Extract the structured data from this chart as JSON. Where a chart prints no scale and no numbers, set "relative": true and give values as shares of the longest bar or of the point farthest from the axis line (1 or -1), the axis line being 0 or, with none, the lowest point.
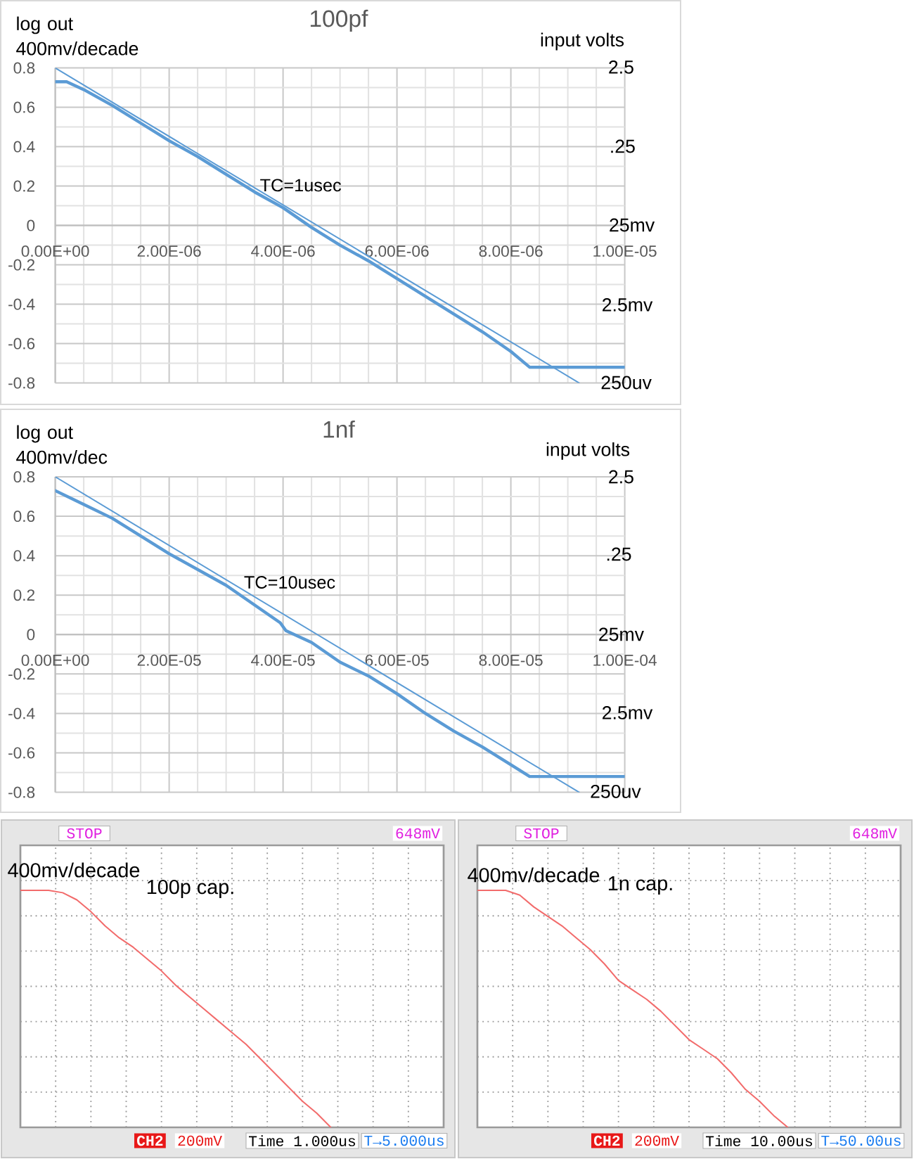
{
  "chart_data": [
    {
      "type": "line",
      "title": "100pf",
      "ylabel": "log out 400mv/decade",
      "xlim": [
        0,
        1e-05
      ],
      "xticks": [
        {
          "value": 0,
          "label": "0.00E+00"
        },
        {
          "value": 2e-06,
          "label": "2.00E-06"
        },
        {
          "value": 4e-06,
          "label": "4.00E-06"
        },
        {
          "value": 6e-06,
          "label": "6.00E-06"
        },
        {
          "value": 8e-06,
          "label": "8.00E-06"
        },
        {
          "value": 1e-05,
          "label": "1.00E-05"
        }
      ],
      "ylim": [
        -0.8,
        0.8
      ],
      "yticks": [
        -0.8,
        -0.6,
        -0.4,
        -0.2,
        0,
        0.2,
        0.4,
        0.6,
        0.8
      ],
      "series": [
        {
          "color": "#5b9bd5",
          "x": [
            0,
            2e-07,
            5e-07,
            1e-06,
            1.5e-06,
            2e-06,
            2.5e-06,
            3e-06,
            3.5e-06,
            4e-06,
            4.5e-06,
            5e-06,
            5.5e-06,
            6e-06,
            6.5e-06,
            7e-06,
            7.5e-06,
            8e-06,
            8.33e-06,
            1e-05
          ],
          "values": [
            0.73,
            0.73,
            0.69,
            0.61,
            0.52,
            0.43,
            0.35,
            0.26,
            0.17,
            0.09,
            -0.01,
            -0.1,
            -0.18,
            -0.27,
            -0.36,
            -0.45,
            -0.54,
            -0.64,
            -0.72,
            -0.72
          ]
        },
        {
          "color": "#5b9bd5",
          "x": [
            0,
            9.2e-06
          ],
          "values": [
            0.8,
            -0.8
          ]
        }
      ],
      "annotations": [
        "input volts",
        "2.5",
        ".25",
        "TC=1usec",
        "25mv",
        "2.5mv",
        "250uv"
      ],
      "grid": true
    },
    {
      "type": "line",
      "title": "1nf",
      "ylabel": "log out 400mv/dec",
      "xlim": [
        0,
        0.0001
      ],
      "xticks": [
        {
          "value": 0,
          "label": "0.00E+00"
        },
        {
          "value": 2e-05,
          "label": "2.00E-05"
        },
        {
          "value": 4e-05,
          "label": "4.00E-05"
        },
        {
          "value": 6e-05,
          "label": "6.00E-05"
        },
        {
          "value": 8e-05,
          "label": "8.00E-05"
        },
        {
          "value": 0.0001,
          "label": "1.00E-04"
        }
      ],
      "ylim": [
        -0.8,
        0.8
      ],
      "yticks": [
        -0.8,
        -0.6,
        -0.4,
        -0.2,
        0,
        0.2,
        0.4,
        0.6,
        0.8
      ],
      "series": [
        {
          "color": "#5b9bd5",
          "x": [
            0,
            5e-06,
            1e-05,
            1.5e-05,
            2e-05,
            2.5e-05,
            3e-05,
            3.5e-05,
            3.95e-05,
            4.05e-05,
            4.5e-05,
            5e-05,
            5.5e-05,
            6e-05,
            6.5e-05,
            7e-05,
            7.5e-05,
            8e-05,
            8.33e-05,
            0.0001
          ],
          "values": [
            0.73,
            0.66,
            0.59,
            0.5,
            0.41,
            0.33,
            0.25,
            0.15,
            0.06,
            0.02,
            -0.04,
            -0.14,
            -0.21,
            -0.3,
            -0.4,
            -0.49,
            -0.57,
            -0.66,
            -0.72,
            -0.72
          ]
        },
        {
          "color": "#5b9bd5",
          "x": [
            0,
            9.2e-05
          ],
          "values": [
            0.8,
            -0.8
          ]
        }
      ],
      "annotations": [
        "input volts",
        "2.5",
        ".25",
        "TC=10usec",
        "25mv",
        "2.5mv",
        "250uv"
      ],
      "grid": true
    },
    {
      "type": "line",
      "title": "100p cap.",
      "ylabel": "400mv/decade",
      "categories": [
        null,
        null,
        null,
        null,
        null,
        null,
        null,
        null,
        null,
        null,
        null,
        null,
        null,
        null,
        null,
        null,
        null,
        null,
        null,
        null,
        null,
        null,
        null,
        null,
        null,
        null,
        null,
        null,
        null,
        null,
        null
      ],
      "relative": true,
      "color": "#f26b6b",
      "values": [
        1,
        1,
        1,
        0.99,
        0.96,
        0.91,
        0.85,
        0.8,
        0.76,
        0.71,
        0.66,
        0.6,
        0.55,
        0.5,
        0.45,
        0.4,
        0.35,
        0.29,
        0.23,
        0.17,
        0.11,
        0.06,
        0,
        null,
        null,
        null,
        null,
        null,
        null,
        null,
        null
      ],
      "grid": true,
      "annotations": [
        "STOP",
        "648mV",
        "CH2",
        "200mV",
        "Time 1.000us",
        "T→5.000us"
      ]
    },
    {
      "type": "line",
      "title": "1n cap.",
      "ylabel": "400mv/decade",
      "categories": [
        null,
        null,
        null,
        null,
        null,
        null,
        null,
        null,
        null,
        null,
        null,
        null,
        null,
        null,
        null,
        null,
        null,
        null,
        null,
        null,
        null,
        null,
        null,
        null,
        null,
        null,
        null,
        null,
        null,
        null,
        null
      ],
      "relative": true,
      "color": "#f26b6b",
      "values": [
        1,
        1,
        1,
        0.98,
        0.93,
        0.89,
        0.85,
        0.8,
        0.75,
        0.69,
        0.62,
        0.58,
        0.54,
        0.49,
        0.43,
        0.37,
        0.33,
        0.29,
        0.23,
        0.16,
        0.11,
        0.05,
        0,
        null,
        null,
        null,
        null,
        null,
        null,
        null,
        null
      ],
      "grid": true,
      "annotations": [
        "STOP",
        "648mV",
        "CH2",
        "200mV",
        "Time 10.00us",
        "T→50.00us"
      ]
    }
  ]
}
